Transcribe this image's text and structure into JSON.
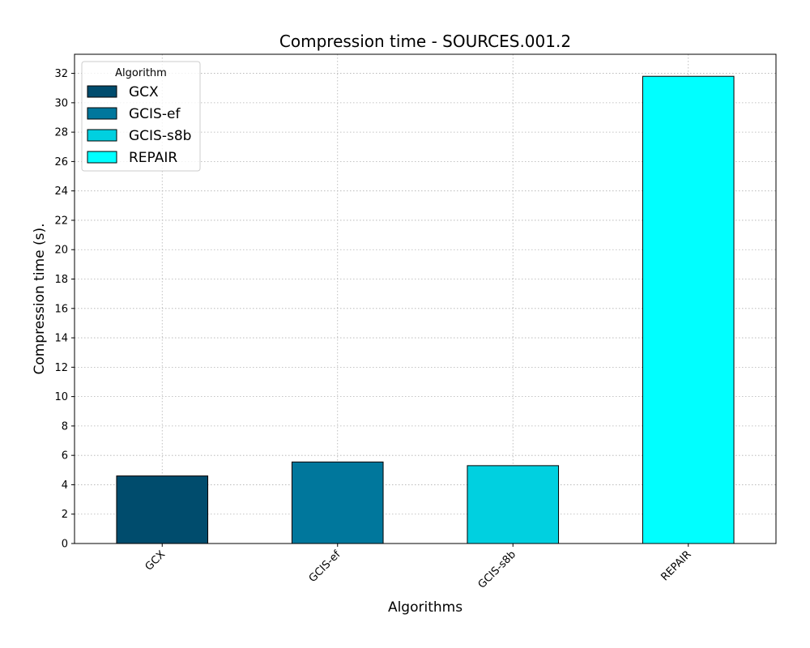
{
  "chart_data": {
    "type": "bar",
    "title": "Compression time -  SOURCES.001.2",
    "xlabel": "Algorithms",
    "ylabel": "Compression time (s).",
    "categories": [
      "GCX",
      "GCIS-ef",
      "GCIS-s8b",
      "REPAIR"
    ],
    "values": [
      4.6,
      5.55,
      5.3,
      31.8
    ],
    "colors": [
      "#004c6d",
      "#00779c",
      "#00d0e0",
      "#00ffff"
    ],
    "ylim": [
      0,
      33.3
    ],
    "yticks": [
      0,
      2,
      4,
      6,
      8,
      10,
      12,
      14,
      16,
      18,
      20,
      22,
      24,
      26,
      28,
      30,
      32
    ],
    "grid": true,
    "legend": {
      "title": "Algorithm",
      "placement": "top-left",
      "entries": [
        "GCX",
        "GCIS-ef",
        "GCIS-s8b",
        "REPAIR"
      ]
    }
  }
}
